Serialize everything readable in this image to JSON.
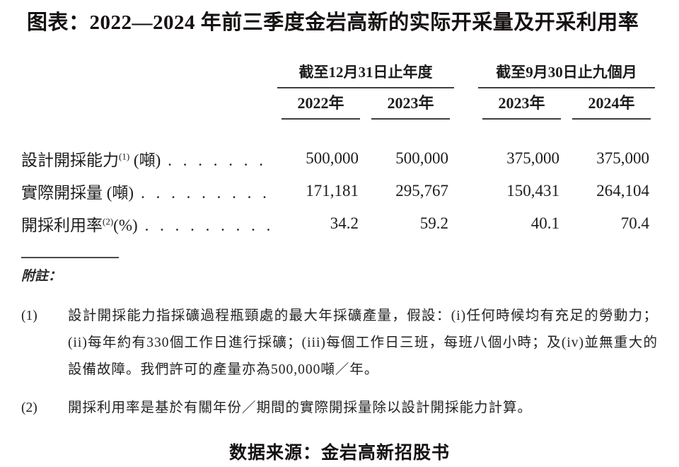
{
  "title": "图表：2022—2024 年前三季度金岩高新的实际开采量及开采利用率",
  "table": {
    "groups": [
      {
        "label": "截至12月31日止年度",
        "years": [
          "2022年",
          "2023年"
        ]
      },
      {
        "label": "截至9月30日止九個月",
        "years": [
          "2023年",
          "2024年"
        ]
      }
    ],
    "rows": [
      {
        "label": "設計開採能力",
        "sup": "(1)",
        "unit": " (噸)",
        "dots": ". . . . . . .",
        "values": [
          "500,000",
          "500,000",
          "375,000",
          "375,000"
        ]
      },
      {
        "label": "實際開採量",
        "sup": "",
        "unit": " (噸)",
        "dots": ". . . . . . . . . . . .",
        "values": [
          "171,181",
          "295,767",
          "150,431",
          "264,104"
        ]
      },
      {
        "label": "開採利用率",
        "sup": "(2)",
        "unit": "(%)",
        "dots": ". . . . . . . . . .",
        "values": [
          "34.2",
          "59.2",
          "40.1",
          "70.4"
        ]
      }
    ]
  },
  "notes": {
    "heading": "附註：",
    "items": [
      {
        "num": "(1)",
        "text": "設計開採能力指採礦過程瓶頸處的最大年採礦產量，假設：(i)任何時候均有充足的勞動力；(ii)每年約有330個工作日進行採礦；(iii)每個工作日三班，每班八個小時；及(iv)並無重大的設備故障。我們許可的產量亦為500,000噸／年。"
      },
      {
        "num": "(2)",
        "text": "開採利用率是基於有關年份／期間的實際開採量除以設計開採能力計算。"
      }
    ]
  },
  "source": "数据来源：金岩高新招股书"
}
